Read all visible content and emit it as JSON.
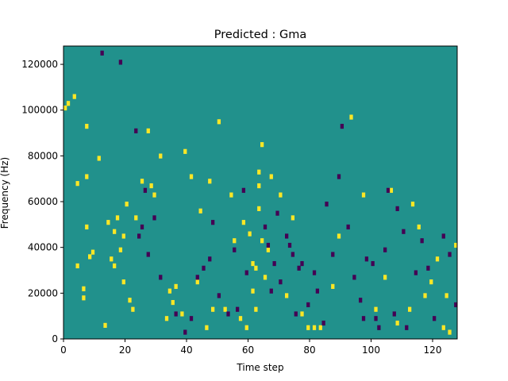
{
  "chart_data": {
    "type": "heatmap",
    "title": "Predicted : Gma",
    "xlabel": "Time step",
    "ylabel": "Frequency (Hz)",
    "xlim": [
      0,
      128
    ],
    "ylim": [
      0,
      128000
    ],
    "x_ticks": [
      0,
      20,
      40,
      60,
      80,
      100,
      120
    ],
    "x_tick_labels": [
      "0",
      "20",
      "40",
      "60",
      "80",
      "100",
      "120"
    ],
    "y_ticks": [
      0,
      20000,
      40000,
      60000,
      80000,
      100000,
      120000
    ],
    "y_tick_labels": [
      "0",
      "20000",
      "40000",
      "60000",
      "80000",
      "100000",
      "120000"
    ],
    "values_legend": {
      "background": 0,
      "low": -1,
      "high": 1
    },
    "colors": {
      "background": "#21918c",
      "low": "#440154",
      "high": "#fde725"
    },
    "grid": false,
    "cells_high": [
      [
        0,
        100000
      ],
      [
        1,
        102000
      ],
      [
        3,
        105000
      ],
      [
        4,
        67000
      ],
      [
        7,
        48000
      ],
      [
        4,
        31000
      ],
      [
        6,
        21000
      ],
      [
        6,
        17000
      ],
      [
        7,
        92000
      ],
      [
        7,
        70000
      ],
      [
        8,
        35000
      ],
      [
        9,
        37000
      ],
      [
        11,
        78000
      ],
      [
        13,
        5000
      ],
      [
        14,
        50000
      ],
      [
        15,
        34000
      ],
      [
        16,
        46000
      ],
      [
        17,
        52000
      ],
      [
        16,
        31000
      ],
      [
        18,
        38000
      ],
      [
        19,
        24000
      ],
      [
        19,
        44000
      ],
      [
        20,
        58000
      ],
      [
        21,
        16000
      ],
      [
        22,
        12000
      ],
      [
        23,
        52000
      ],
      [
        25,
        68000
      ],
      [
        27,
        90000
      ],
      [
        28,
        66000
      ],
      [
        29,
        62000
      ],
      [
        31,
        79000
      ],
      [
        33,
        8000
      ],
      [
        34,
        20000
      ],
      [
        35,
        15000
      ],
      [
        36,
        22000
      ],
      [
        38,
        10000
      ],
      [
        39,
        81000
      ],
      [
        41,
        70000
      ],
      [
        43,
        24000
      ],
      [
        44,
        55000
      ],
      [
        46,
        4000
      ],
      [
        47,
        68000
      ],
      [
        48,
        12000
      ],
      [
        50,
        94000
      ],
      [
        52,
        12000
      ],
      [
        54,
        62000
      ],
      [
        55,
        42000
      ],
      [
        57,
        8000
      ],
      [
        58,
        50000
      ],
      [
        59,
        4000
      ],
      [
        60,
        45000
      ],
      [
        61,
        32000
      ],
      [
        61,
        20000
      ],
      [
        62,
        30000
      ],
      [
        62,
        12000
      ],
      [
        63,
        56000
      ],
      [
        64,
        42000
      ],
      [
        63,
        66000
      ],
      [
        63,
        72000
      ],
      [
        64,
        84000
      ],
      [
        65,
        26000
      ],
      [
        66,
        38000
      ],
      [
        67,
        70000
      ],
      [
        70,
        62000
      ],
      [
        72,
        18000
      ],
      [
        74,
        52000
      ],
      [
        77,
        10000
      ],
      [
        79,
        4000
      ],
      [
        81,
        4000
      ],
      [
        83,
        4000
      ],
      [
        87,
        22000
      ],
      [
        89,
        44000
      ],
      [
        93,
        96000
      ],
      [
        97,
        62000
      ],
      [
        101,
        12000
      ],
      [
        104,
        26000
      ],
      [
        106,
        64000
      ],
      [
        108,
        6000
      ],
      [
        112,
        12000
      ],
      [
        113,
        58000
      ],
      [
        115,
        48000
      ],
      [
        117,
        18000
      ],
      [
        119,
        24000
      ],
      [
        121,
        34000
      ],
      [
        123,
        4000
      ],
      [
        125,
        2000
      ],
      [
        127,
        40000
      ],
      [
        124,
        18000
      ]
    ],
    "cells_low": [
      [
        12,
        124000
      ],
      [
        18,
        120000
      ],
      [
        23,
        90000
      ],
      [
        24,
        44000
      ],
      [
        25,
        48000
      ],
      [
        26,
        64000
      ],
      [
        27,
        36000
      ],
      [
        29,
        52000
      ],
      [
        31,
        26000
      ],
      [
        36,
        10000
      ],
      [
        39,
        2000
      ],
      [
        41,
        8000
      ],
      [
        43,
        26000
      ],
      [
        45,
        30000
      ],
      [
        47,
        34000
      ],
      [
        48,
        50000
      ],
      [
        50,
        18000
      ],
      [
        53,
        10000
      ],
      [
        55,
        38000
      ],
      [
        56,
        12000
      ],
      [
        58,
        64000
      ],
      [
        59,
        28000
      ],
      [
        65,
        48000
      ],
      [
        66,
        40000
      ],
      [
        67,
        20000
      ],
      [
        68,
        32000
      ],
      [
        69,
        54000
      ],
      [
        70,
        24000
      ],
      [
        72,
        44000
      ],
      [
        73,
        40000
      ],
      [
        74,
        36000
      ],
      [
        75,
        10000
      ],
      [
        76,
        30000
      ],
      [
        77,
        32000
      ],
      [
        79,
        14000
      ],
      [
        81,
        28000
      ],
      [
        82,
        20000
      ],
      [
        84,
        6000
      ],
      [
        85,
        58000
      ],
      [
        87,
        36000
      ],
      [
        89,
        70000
      ],
      [
        90,
        92000
      ],
      [
        92,
        48000
      ],
      [
        94,
        26000
      ],
      [
        96,
        16000
      ],
      [
        97,
        8000
      ],
      [
        98,
        34000
      ],
      [
        100,
        32000
      ],
      [
        101,
        8000
      ],
      [
        102,
        4000
      ],
      [
        104,
        38000
      ],
      [
        105,
        64000
      ],
      [
        107,
        10000
      ],
      [
        108,
        56000
      ],
      [
        110,
        46000
      ],
      [
        111,
        4000
      ],
      [
        114,
        28000
      ],
      [
        116,
        42000
      ],
      [
        118,
        30000
      ],
      [
        120,
        8000
      ],
      [
        123,
        44000
      ],
      [
        125,
        36000
      ],
      [
        127,
        14000
      ]
    ]
  }
}
